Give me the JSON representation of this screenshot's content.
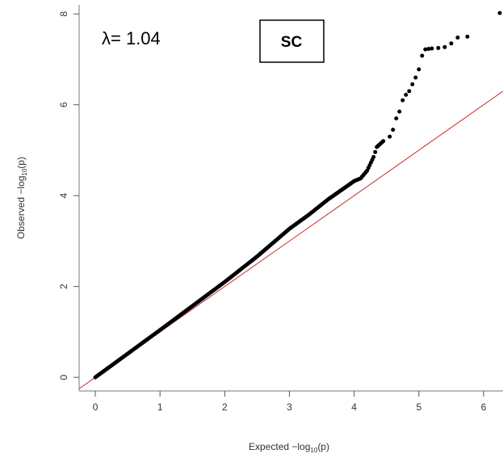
{
  "chart_data": {
    "type": "scatter",
    "title": "",
    "xlabel": {
      "prefix": "Expected  −log",
      "sub": "10",
      "suffix": "(p)"
    },
    "ylabel": {
      "prefix": "Observed  −log",
      "sub": "10",
      "suffix": "(p)"
    },
    "xlim": [
      -0.25,
      6.3
    ],
    "ylim": [
      -0.3,
      8.2
    ],
    "x_ticks": [
      "0",
      "1",
      "2",
      "3",
      "4",
      "5",
      "6"
    ],
    "y_ticks": [
      "0",
      "2",
      "4",
      "6",
      "8"
    ],
    "grid": false,
    "lambda_text": "λ= 1.04",
    "panel_label": "SC",
    "reference_line": {
      "slope": 1,
      "intercept": 0,
      "color": "#cc2a2a"
    },
    "point_color": "#000000",
    "series": [
      {
        "values": [
          [
            0.0,
            0.0
          ],
          [
            0.5,
            0.52
          ],
          [
            1.0,
            1.04
          ],
          [
            1.5,
            1.57
          ],
          [
            2.0,
            2.1
          ],
          [
            2.5,
            2.66
          ],
          [
            3.0,
            3.27
          ],
          [
            3.3,
            3.58
          ],
          [
            3.6,
            3.92
          ],
          [
            3.9,
            4.22
          ],
          [
            4.0,
            4.32
          ],
          [
            4.1,
            4.38
          ],
          [
            4.2,
            4.55
          ],
          [
            4.3,
            4.85
          ],
          [
            4.35,
            5.07
          ],
          [
            4.45,
            5.2
          ],
          [
            4.55,
            5.3
          ],
          [
            4.6,
            5.45
          ],
          [
            4.65,
            5.7
          ],
          [
            4.7,
            5.85
          ],
          [
            4.75,
            6.1
          ],
          [
            4.8,
            6.22
          ],
          [
            4.85,
            6.3
          ],
          [
            4.9,
            6.45
          ],
          [
            4.95,
            6.6
          ],
          [
            5.0,
            6.78
          ],
          [
            5.05,
            7.08
          ],
          [
            5.1,
            7.22
          ],
          [
            5.15,
            7.23
          ],
          [
            5.2,
            7.24
          ],
          [
            5.3,
            7.25
          ],
          [
            5.4,
            7.27
          ],
          [
            5.5,
            7.35
          ],
          [
            5.6,
            7.48
          ],
          [
            5.75,
            7.5
          ],
          [
            6.25,
            8.02
          ]
        ]
      }
    ]
  }
}
